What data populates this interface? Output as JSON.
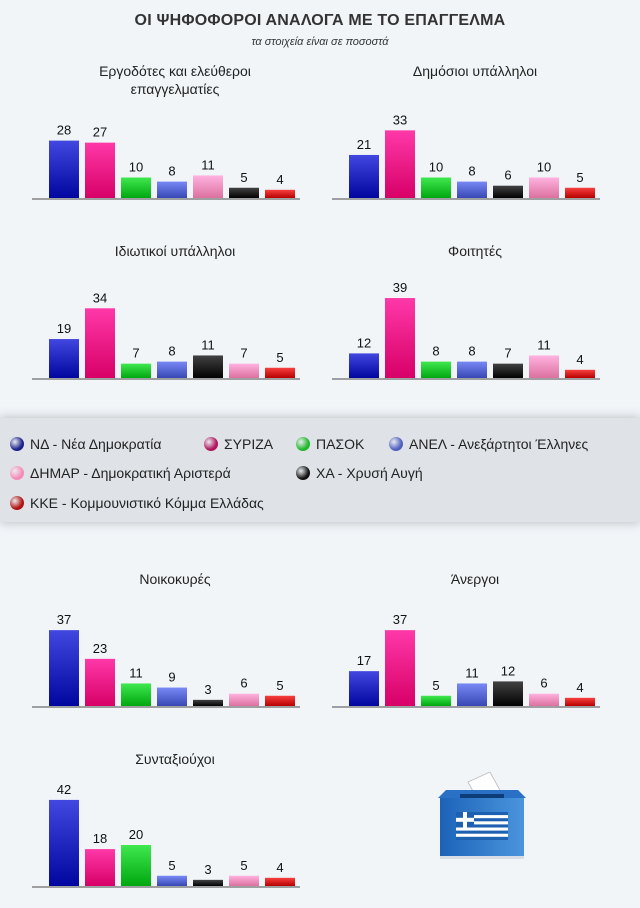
{
  "header": {
    "title": "ΟΙ ΨΗΦΟΦΟΡΟΙ ΑΝΑΛΟΓΑ ΜΕ ΤΟ ΕΠΑΓΓΕΛΜΑ",
    "subtitle": "τα στοιχεία είναι σε ποσοστά"
  },
  "colors": {
    "nd": "#1a1fb8",
    "syriza": "#f01080",
    "pasok": "#18c028",
    "anel": "#5060cc",
    "dimar": "#f58ab8",
    "xa": "#1a1a1a",
    "kke": "#d01818"
  },
  "legend": [
    {
      "label": "ΝΔ - Νέα Δημοκρατία",
      "color": "#1a1f8c"
    },
    {
      "label": "ΣΥΡΙΖΑ",
      "color": "#b0145c"
    },
    {
      "label": "ΠΑΣΟΚ",
      "color": "#20b82c"
    },
    {
      "label": "ΑΝΕΛ - Ανεξάρτητοι Έλληνες",
      "color": "#5060c0"
    },
    {
      "label": "ΔΗΜΑΡ - Δημοκρατική Αριστερά",
      "color": "#f58ab8"
    },
    {
      "label": "ΧΑ - Χρυσή Αυγή",
      "color": "#111111"
    },
    {
      "label": "ΚΚΕ - Κομμουνιστικό Κόμμα Ελλάδας",
      "color": "#b01010"
    }
  ],
  "chart_data": [
    {
      "type": "bar",
      "title": "Εργοδότες και ελεύθεροι επαγγελματίες",
      "title_lines": [
        "Εργοδότες και ελεύθεροι",
        "επαγγελματίες"
      ],
      "categories": [
        "ΝΔ",
        "ΣΥΡΙΖΑ",
        "ΠΑΣΟΚ",
        "ΑΝΕΛ",
        "ΔΗΜΑΡ",
        "ΧΑ",
        "ΚΚΕ"
      ],
      "values": [
        28,
        27,
        10,
        8,
        11,
        5,
        4
      ],
      "grid": false
    },
    {
      "type": "bar",
      "title": "Δημόσιοι υπάλληλοι",
      "title_lines": [
        "Δημόσιοι υπάλληλοι"
      ],
      "categories": [
        "ΝΔ",
        "ΣΥΡΙΖΑ",
        "ΠΑΣΟΚ",
        "ΑΝΕΛ",
        "ΧΑ",
        "ΔΗΜΑΡ",
        "ΚΚΕ"
      ],
      "values": [
        21,
        33,
        10,
        8,
        6,
        10,
        5
      ],
      "grid": false
    },
    {
      "type": "bar",
      "title": "Ιδιωτικοί υπάλληλοι",
      "title_lines": [
        "Ιδιωτικοί υπάλληλοι"
      ],
      "categories": [
        "ΝΔ",
        "ΣΥΡΙΖΑ",
        "ΠΑΣΟΚ",
        "ΑΝΕΛ",
        "ΧΑ",
        "ΔΗΜΑΡ",
        "ΚΚΕ"
      ],
      "values": [
        19,
        34,
        7,
        8,
        11,
        7,
        5
      ],
      "grid": false
    },
    {
      "type": "bar",
      "title": "Φοιτητές",
      "title_lines": [
        "Φοιτητές"
      ],
      "categories": [
        "ΝΔ",
        "ΣΥΡΙΖΑ",
        "ΠΑΣΟΚ",
        "ΑΝΕΛ",
        "ΧΑ",
        "ΔΗΜΑΡ",
        "ΚΚΕ"
      ],
      "values": [
        12,
        39,
        8,
        8,
        7,
        11,
        4
      ],
      "grid": false
    },
    {
      "type": "bar",
      "title": "Νοικοκυρές",
      "title_lines": [
        "Νοικοκυρές"
      ],
      "categories": [
        "ΝΔ",
        "ΣΥΡΙΖΑ",
        "ΠΑΣΟΚ",
        "ΑΝΕΛ",
        "ΧΑ",
        "ΔΗΜΑΡ",
        "ΚΚΕ"
      ],
      "values": [
        37,
        23,
        11,
        9,
        3,
        6,
        5
      ],
      "grid": false
    },
    {
      "type": "bar",
      "title": "Άνεργοι",
      "title_lines": [
        "Άνεργοι"
      ],
      "categories": [
        "ΝΔ",
        "ΣΥΡΙΖΑ",
        "ΠΑΣΟΚ",
        "ΑΝΕΛ",
        "ΧΑ",
        "ΔΗΜΑΡ",
        "ΚΚΕ"
      ],
      "values": [
        17,
        37,
        5,
        11,
        12,
        6,
        4
      ],
      "grid": false
    },
    {
      "type": "bar",
      "title": "Συνταξιούχοι",
      "title_lines": [
        "Συνταξιούχοι"
      ],
      "categories": [
        "ΝΔ",
        "ΣΥΡΙΖΑ",
        "ΠΑΣΟΚ",
        "ΑΝΕΛ",
        "ΧΑ",
        "ΔΗΜΑΡ",
        "ΚΚΕ"
      ],
      "values": [
        42,
        18,
        20,
        5,
        3,
        5,
        4
      ],
      "grid": false
    }
  ]
}
